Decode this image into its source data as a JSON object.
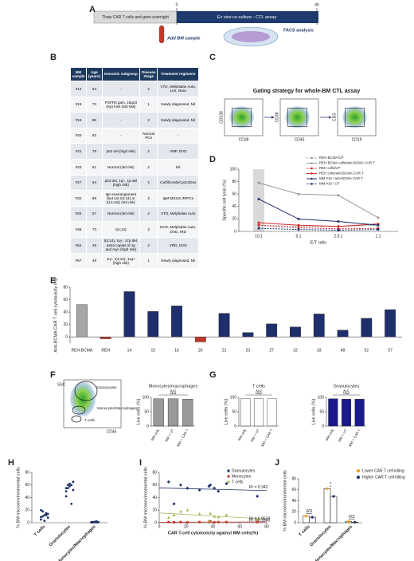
{
  "panel_labels": [
    "A",
    "B",
    "C",
    "D",
    "E",
    "F",
    "G",
    "H",
    "I",
    "J"
  ],
  "timeline": {
    "start": "0",
    "end": "4h",
    "step1": "Thaw CAR T cells and grow overnight",
    "step2": "Ex vivo co-culture - CTL assay",
    "add": "Add BM sample",
    "facs": "FACS analysis"
  },
  "table": {
    "header": [
      "BM sample",
      "Age (years)",
      "Genomic subgroup",
      "Disease Stage",
      "Treatment regimens"
    ],
    "rows": [
      [
        "#14",
        "64",
        "-",
        "2",
        "VTD, Melphalan Auto, Len, Dara"
      ],
      [
        "#15",
        "73",
        "FGFR3 gain, 16q23 (Kp) loss (std risk)",
        "1",
        "Newly diagnosed, Nil"
      ],
      [
        "#16",
        "86",
        "-",
        "2",
        "Newly diagnosed, Nil"
      ],
      [
        "#20",
        "62",
        "-",
        "Normal PCs",
        "-"
      ],
      [
        "#21",
        "79",
        "p53 del (high risk)",
        "2",
        "VMP, DVD"
      ],
      [
        "#23",
        "81",
        "Normal (std risk)",
        "2",
        "Nil"
      ],
      [
        "#27",
        "64",
        "p53 del, 1q+, 1p del (high risk)",
        "2",
        "Carfilzomib/Cyclo/Dex"
      ],
      [
        "#32",
        "89",
        "IgH rearrangement (but not t(4;14) or t(14;16)) (std risk)",
        "2",
        "IgM MGUS IR/PCs"
      ],
      [
        "#33",
        "57",
        "Normal (std risk)",
        "2",
        "VTD, Melphalan Auto"
      ],
      [
        "#48",
        "73",
        "t(4;14)",
        "2",
        "KCD, Melphalan Auto, DVD, IRD"
      ],
      [
        "#52",
        "49",
        "t(4;14), 1q+, 17p del, extra copies of 1p and myc (high risk)",
        "2",
        "VRD, DVD"
      ],
      [
        "#57",
        "46",
        "1q+, t(4;14), 11q+ (high risk)",
        "1",
        "Newly diagnosed, Nil"
      ]
    ]
  },
  "gating": {
    "title": "Gating strategy for whole-BM CTL assay",
    "plots": [
      {
        "y": "CD138",
        "x": "CD38"
      },
      {
        "y": "CD38",
        "x": "CD45"
      },
      {
        "y": "CD3",
        "x": "CD19"
      }
    ]
  },
  "flow": {
    "y": "SSC",
    "x": "CD45",
    "gates": [
      "Granulocytes",
      "Monocytes/Macrophages",
      "T cells"
    ]
  },
  "chart_data": [
    {
      "type": "line",
      "ylabel": "Specific cell lysis (%)",
      "xlabel": "E/T ratio",
      "categories": [
        "10:1",
        "5:1",
        "2.5:1",
        "1:1"
      ],
      "ylim": [
        0,
        100
      ],
      "yticks": [
        0,
        20,
        40,
        60,
        80,
        100
      ],
      "series": [
        {
          "name": "REH-BCMA/UT",
          "color": "#999999",
          "dashed": true,
          "values": [
            10,
            8,
            8,
            10
          ]
        },
        {
          "name": "REH-BCMA cells/anti-BCMA CAR T",
          "color": "#999999",
          "dashed": false,
          "values": [
            78,
            60,
            58,
            22
          ]
        },
        {
          "name": "REH cells/UT",
          "color": "#d62728",
          "dashed": true,
          "values": [
            10,
            6,
            4,
            5
          ]
        },
        {
          "name": "REH cells/anti-BCMA CAR T",
          "color": "#d62728",
          "dashed": false,
          "values": [
            14,
            10,
            8,
            12
          ]
        },
        {
          "name": "MM #16 / anti-BCMA CAR T",
          "color": "#1f2f6b",
          "dashed": false,
          "values": [
            52,
            20,
            16,
            10
          ]
        },
        {
          "name": "MM #16 / UT",
          "color": "#1f2f6b",
          "dashed": true,
          "values": [
            5,
            3,
            2,
            3
          ]
        }
      ]
    },
    {
      "type": "bar",
      "ylabel": "Anti-BCMA CAR T cell cytotoxicity (%)",
      "categories": [
        "REH-BCMA",
        "REH",
        "14",
        "15",
        "16",
        "20",
        "21",
        "23",
        "27",
        "32",
        "33",
        "48",
        "52",
        "57"
      ],
      "values": [
        52,
        -3,
        73,
        41,
        50,
        -8,
        38,
        7,
        21,
        16,
        37,
        11,
        30,
        44
      ],
      "colors": [
        "#a6a6a6",
        "#c0392b",
        "#1f2f6b",
        "#1f2f6b",
        "#1f2f6b",
        "#c0392b",
        "#1f2f6b",
        "#1f2f6b",
        "#1f2f6b",
        "#1f2f6b",
        "#1f2f6b",
        "#1f2f6b",
        "#1f2f6b",
        "#1f2f6b"
      ],
      "ylim": [
        -10,
        80
      ],
      "yticks": [
        0,
        20,
        40,
        60,
        80
      ]
    },
    {
      "type": "bar",
      "title": "Monocytes/macrophages",
      "ylabel": "Live cells (%)",
      "annotation": "NS",
      "categories": [
        "MM only",
        "MM + UT",
        "MM + CAR T"
      ],
      "values": [
        95,
        95,
        94
      ],
      "color": "#999999",
      "ylim": [
        0,
        100
      ],
      "yticks": [
        0,
        50,
        100
      ]
    },
    {
      "type": "bar",
      "title": "T cells",
      "ylabel": "Live cells (%)",
      "annotation": "NS",
      "categories": [
        "MM only",
        "MM + UT",
        "MM + CAR T"
      ],
      "values": [
        96,
        96,
        95
      ],
      "color": "#ffffff",
      "ylim": [
        0,
        100
      ],
      "yticks": [
        0,
        50,
        100
      ]
    },
    {
      "type": "bar",
      "title": "Granulocytes",
      "ylabel": "Live cells (%)",
      "annotation": "NS",
      "categories": [
        "MM only",
        "MM + UT",
        "MM + CAR T"
      ],
      "values": [
        95,
        94,
        94
      ],
      "color": "#1a1a8c",
      "ylim": [
        0,
        100
      ],
      "yticks": [
        0,
        50,
        100
      ]
    },
    {
      "type": "strip",
      "ylabel": "% BM microenvironmental cells",
      "categories": [
        "T cells",
        "Granulocytes",
        "Monocytes/Macrophages"
      ],
      "color": "#1f2f6b",
      "values": [
        [
          5,
          10,
          12,
          15,
          8,
          20,
          18,
          3,
          12,
          14,
          9
        ],
        [
          42,
          55,
          62,
          60,
          65,
          55,
          60,
          58,
          30,
          52,
          50
        ],
        [
          1,
          0.5,
          1,
          2,
          1,
          0.5,
          1,
          1.5,
          0.5,
          1,
          1
        ]
      ],
      "ylim": [
        0,
        80
      ],
      "yticks": [
        0,
        20,
        40,
        60,
        80
      ]
    },
    {
      "type": "scatter",
      "ylabel": "% BM microenvironmental cells",
      "xlabel": "CAR T-cell cytotoxicity against MM cells(%)",
      "x": [
        73,
        41,
        50,
        38,
        7,
        21,
        16,
        37,
        11,
        30,
        44
      ],
      "xlim": [
        0,
        80
      ],
      "xticks": [
        0,
        20,
        40,
        60,
        80
      ],
      "ylim": [
        0,
        80
      ],
      "yticks": [
        0,
        20,
        40,
        60,
        80
      ],
      "series": [
        {
          "name": "Granulocytes",
          "color": "#1f2f6b",
          "marker": "diamond",
          "values": [
            42,
            55,
            62,
            60,
            65,
            55,
            60,
            58,
            30,
            52,
            50
          ]
        },
        {
          "name": "Monocytes",
          "color": "#c0392b",
          "marker": "square",
          "values": [
            1,
            0.5,
            1,
            2,
            1,
            0.5,
            1,
            1.5,
            0.5,
            1,
            1
          ]
        },
        {
          "name": "T cells",
          "color": "#a5b85a",
          "marker": "triangle",
          "values": [
            5,
            10,
            12,
            15,
            8,
            20,
            18,
            3,
            12,
            14,
            9
          ]
        }
      ],
      "annotations": [
        "R² = 0.342",
        "R² = 0.0539",
        "R² = 0.1843"
      ]
    },
    {
      "type": "groupbar",
      "ylabel": "% BM microenvironmental cells",
      "categories": [
        "T cells",
        "Granulocytes",
        "Monocytes/Macrophages"
      ],
      "annotations": [
        "NS",
        "*",
        "NS"
      ],
      "ylim": [
        0,
        80
      ],
      "yticks": [
        0,
        20,
        40,
        60,
        80
      ],
      "series": [
        {
          "name": "Lower CAR T cell killing",
          "color": "#f39c12",
          "values": [
            12,
            62,
            2
          ]
        },
        {
          "name": "Higher CAR T cell killing",
          "color": "#1f2f6b",
          "values": [
            10,
            48,
            1
          ]
        }
      ]
    }
  ]
}
